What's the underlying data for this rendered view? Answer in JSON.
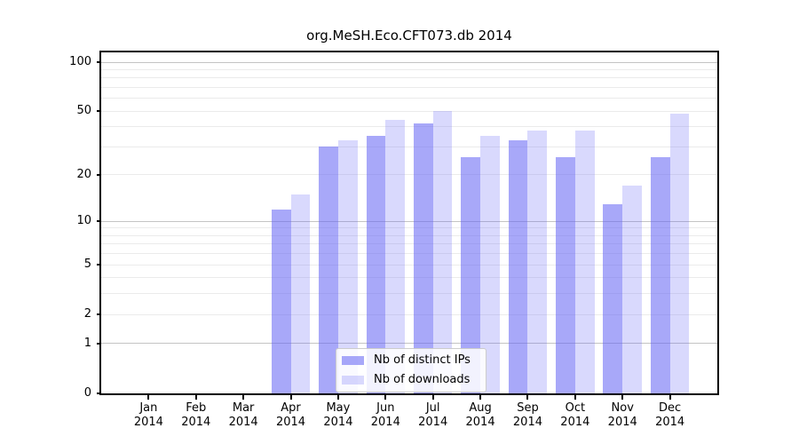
{
  "title": "org.MeSH.Eco.CFT073.db 2014",
  "chart_data": {
    "type": "bar",
    "title": "org.MeSH.Eco.CFT073.db 2014",
    "y_scale": "log10(1+x)",
    "categories": [
      "Jan",
      "Feb",
      "Mar",
      "Apr",
      "May",
      "Jun",
      "Jul",
      "Aug",
      "Sep",
      "Oct",
      "Nov",
      "Dec"
    ],
    "year_label": "2014",
    "series": [
      {
        "name": "Nb of distinct IPs",
        "color": "#6464f5",
        "alpha": 0.56,
        "values": [
          0,
          0,
          0,
          12,
          30,
          35,
          42,
          26,
          33,
          26,
          13,
          26
        ]
      },
      {
        "name": "Nb of downloads",
        "color": "#6464f5",
        "alpha": 0.245,
        "values": [
          0,
          0,
          0,
          15,
          33,
          44,
          50,
          35,
          38,
          38,
          17,
          48
        ]
      }
    ],
    "yticks": [
      0,
      1,
      2,
      5,
      10,
      20,
      50,
      100
    ],
    "minor_gridlines": [
      2,
      3,
      4,
      5,
      6,
      7,
      8,
      9,
      20,
      30,
      40,
      50,
      60,
      70,
      80,
      90
    ],
    "major_gridlines": [
      1,
      10,
      100
    ],
    "ylim": [
      0,
      113
    ],
    "xlabel": "",
    "ylabel": "",
    "grid": true,
    "legend_position": "lower center inside"
  },
  "colors": {
    "major_grid": "#c4c4c4",
    "minor_grid": "#ebebeb",
    "axis": "#000000",
    "legend_border": "#cccccc",
    "background": "#ffffff"
  }
}
